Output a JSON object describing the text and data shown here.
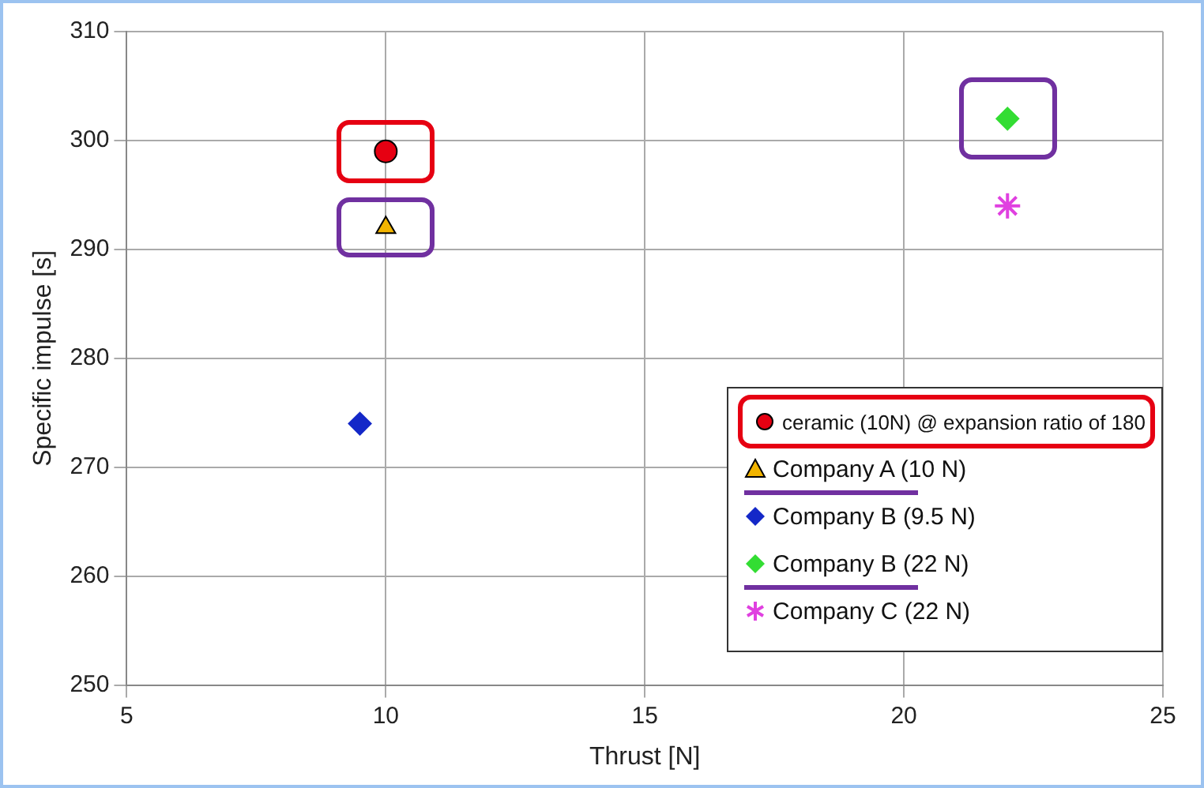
{
  "chart_data": {
    "type": "scatter",
    "xlabel": "Thrust [N]",
    "ylabel": "Specific impulse [s]",
    "xlim": [
      5,
      25
    ],
    "xticks": [
      5,
      10,
      15,
      20,
      25
    ],
    "ylim": [
      250,
      310
    ],
    "yticks": [
      250,
      260,
      270,
      280,
      290,
      300,
      310
    ],
    "grid": true,
    "legend": "bottom right",
    "series": [
      {
        "name": "ceramic (10N) @ expansion ratio of 180",
        "color": "#e60012",
        "marker": "circle",
        "x": [
          10
        ],
        "values": [
          299
        ]
      },
      {
        "name": "Company A (10 N)",
        "color": "#f2b400",
        "marker": "triangle",
        "x": [
          10
        ],
        "values": [
          292
        ]
      },
      {
        "name": "Company B (9.5 N)",
        "color": "#1428c8",
        "marker": "diamond",
        "x": [
          9.5
        ],
        "values": [
          274
        ]
      },
      {
        "name": "Company B (22 N)",
        "color": "#33dd33",
        "marker": "diamond",
        "x": [
          22
        ],
        "values": [
          302
        ]
      },
      {
        "name": "Company C (22 N)",
        "color": "#e040e0",
        "marker": "cross",
        "x": [
          22
        ],
        "values": [
          294
        ]
      }
    ]
  }
}
